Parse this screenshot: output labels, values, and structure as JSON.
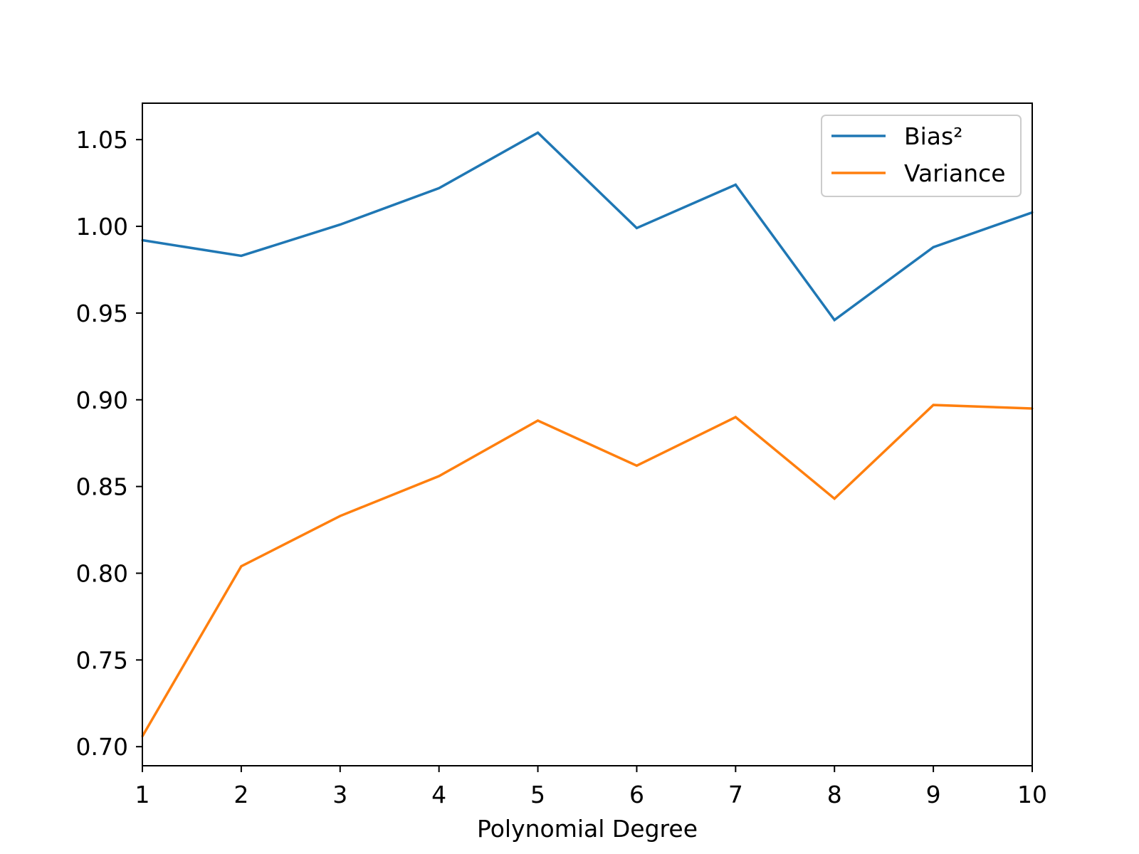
{
  "chart_data": {
    "type": "line",
    "title": "",
    "xlabel": "Polynomial Degree",
    "ylabel": "",
    "x": [
      1,
      2,
      3,
      4,
      5,
      6,
      7,
      8,
      9,
      10
    ],
    "xlim": [
      1,
      10
    ],
    "ylim": [
      0.689,
      1.071
    ],
    "xticks": [
      1,
      2,
      3,
      4,
      5,
      6,
      7,
      8,
      9,
      10
    ],
    "xtick_labels": [
      "1",
      "2",
      "3",
      "4",
      "5",
      "6",
      "7",
      "8",
      "9",
      "10"
    ],
    "yticks": [
      0.7,
      0.75,
      0.8,
      0.85,
      0.9,
      0.95,
      1.0,
      1.05
    ],
    "ytick_labels": [
      "0.70",
      "0.75",
      "0.80",
      "0.85",
      "0.90",
      "0.95",
      "1.00",
      "1.05"
    ],
    "grid": false,
    "legend_position": "top-right",
    "series": [
      {
        "name": "Bias²",
        "color": "#1f77b4",
        "values": [
          0.992,
          0.983,
          1.001,
          1.022,
          1.054,
          0.999,
          1.024,
          0.946,
          0.988,
          1.008
        ]
      },
      {
        "name": "Variance",
        "color": "#ff7f0e",
        "values": [
          0.706,
          0.804,
          0.833,
          0.856,
          0.888,
          0.862,
          0.89,
          0.843,
          0.897,
          0.895
        ]
      }
    ]
  }
}
